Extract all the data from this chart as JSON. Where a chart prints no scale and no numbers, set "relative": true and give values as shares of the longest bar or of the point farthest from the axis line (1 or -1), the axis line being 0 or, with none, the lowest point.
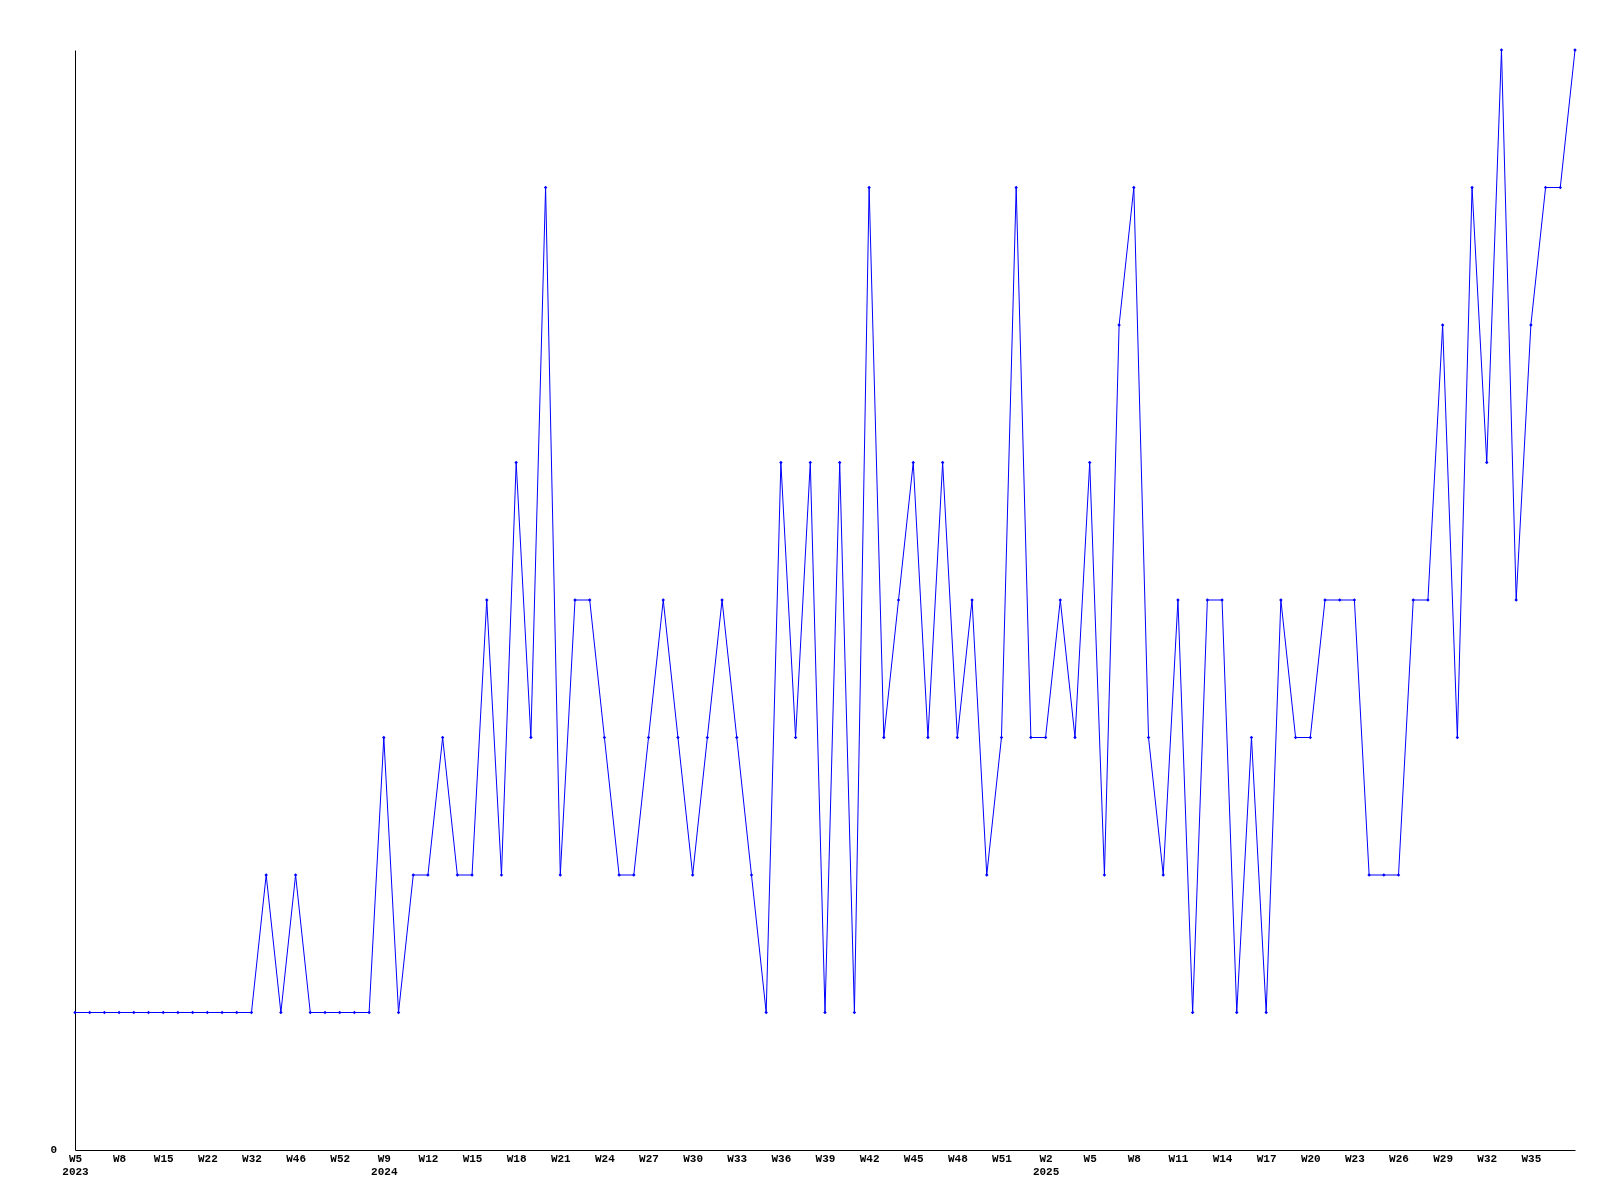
{
  "chart_data": {
    "type": "line",
    "relative": true,
    "marker": "diamond",
    "grid": false,
    "legend": false,
    "annotations": [
      "0"
    ],
    "categories": [
      "W5\n2023",
      null,
      null,
      "W8",
      null,
      null,
      "W15",
      null,
      null,
      "W22",
      null,
      null,
      "W32",
      null,
      null,
      "W46",
      null,
      null,
      "W52",
      null,
      null,
      "W9\n2024",
      null,
      null,
      "W12",
      null,
      null,
      "W15",
      null,
      null,
      "W18",
      null,
      null,
      "W21",
      null,
      null,
      "W24",
      null,
      null,
      "W27",
      null,
      null,
      "W30",
      null,
      null,
      "W33",
      null,
      null,
      "W36",
      null,
      null,
      "W39",
      null,
      null,
      "W42",
      null,
      null,
      "W45",
      null,
      null,
      "W48",
      null,
      null,
      "W51",
      null,
      null,
      "W2\n2025",
      null,
      null,
      "W5",
      null,
      null,
      "W8",
      null,
      null,
      "W11",
      null,
      null,
      "W14",
      null,
      null,
      "W17",
      null,
      null,
      "W20",
      null,
      null,
      "W23",
      null,
      null,
      "W26",
      null,
      null,
      "W29",
      null,
      null,
      "W32",
      null,
      null,
      "W35",
      null,
      null,
      null
    ],
    "series": [
      {
        "color": "#0000ff",
        "values": [
          0.125,
          0.125,
          0.125,
          0.125,
          0.125,
          0.125,
          0.125,
          0.125,
          0.125,
          0.125,
          0.125,
          0.125,
          0.125,
          0.25,
          0.125,
          0.25,
          0.125,
          0.125,
          0.125,
          0.125,
          0.125,
          0.375,
          0.125,
          0.25,
          0.25,
          0.375,
          0.25,
          0.25,
          0.5,
          0.25,
          0.625,
          0.375,
          0.875,
          0.25,
          0.5,
          0.5,
          0.375,
          0.25,
          0.25,
          0.375,
          0.5,
          0.375,
          0.25,
          0.375,
          0.5,
          0.375,
          0.25,
          0.125,
          0.625,
          0.375,
          0.625,
          0.125,
          0.625,
          0.125,
          0.875,
          0.375,
          0.5,
          0.625,
          0.375,
          0.625,
          0.375,
          0.5,
          0.25,
          0.375,
          0.875,
          0.375,
          0.375,
          0.5,
          0.375,
          0.625,
          0.25,
          0.75,
          0.875,
          0.375,
          0.25,
          0.5,
          0.125,
          0.5,
          0.5,
          0.125,
          0.375,
          0.125,
          0.5,
          0.375,
          0.375,
          0.5,
          0.5,
          0.5,
          0.25,
          0.25,
          0.25,
          0.5,
          0.5,
          0.75,
          0.375,
          0.875,
          0.625,
          1,
          0.5,
          0.75,
          0.875,
          0.875,
          1
        ]
      }
    ]
  }
}
